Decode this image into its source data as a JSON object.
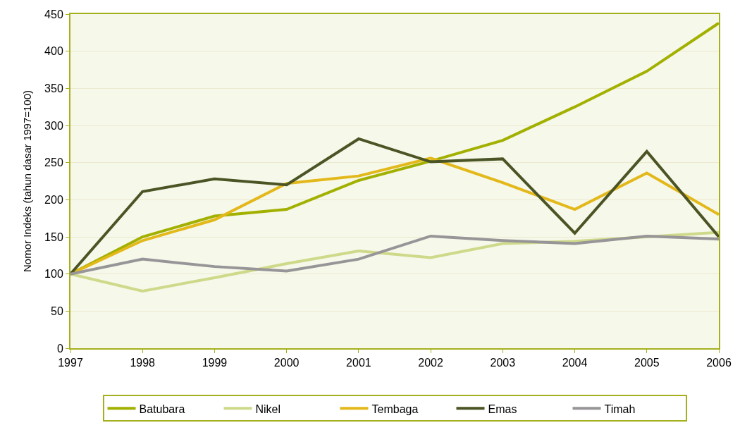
{
  "chart_data": {
    "type": "line",
    "ylabel": "Nomor Indeks (tahun dasar 1997=100)",
    "x": [
      1997,
      1998,
      1999,
      2000,
      2001,
      2002,
      2003,
      2004,
      2005,
      2006
    ],
    "xlim": [
      1997,
      2006
    ],
    "xticks": [
      1997,
      1998,
      1999,
      2000,
      2001,
      2002,
      2003,
      2004,
      2005,
      2006
    ],
    "ylim": [
      0,
      450
    ],
    "yticks": [
      0,
      50,
      100,
      150,
      200,
      250,
      300,
      350,
      400,
      450
    ],
    "grid": "y",
    "legend": "bottom",
    "marker": "none",
    "line_style": "solid",
    "series": [
      {
        "name": "Batubara",
        "color": "#a2b000",
        "values": [
          100,
          150,
          178,
          187,
          226,
          252,
          280,
          325,
          373,
          438
        ]
      },
      {
        "name": "Nikel",
        "color": "#cfd98a",
        "values": [
          100,
          77,
          95,
          114,
          131,
          122,
          141,
          144,
          150,
          156
        ]
      },
      {
        "name": "Tembaga",
        "color": "#e3b81a",
        "values": [
          100,
          145,
          173,
          222,
          232,
          256,
          223,
          187,
          236,
          180
        ]
      },
      {
        "name": "Emas",
        "color": "#4a5424",
        "values": [
          100,
          211,
          228,
          220,
          282,
          251,
          255,
          155,
          265,
          150
        ]
      },
      {
        "name": "Timah",
        "color": "#979597",
        "values": [
          100,
          120,
          110,
          104,
          120,
          151,
          145,
          141,
          151,
          147
        ]
      }
    ]
  }
}
